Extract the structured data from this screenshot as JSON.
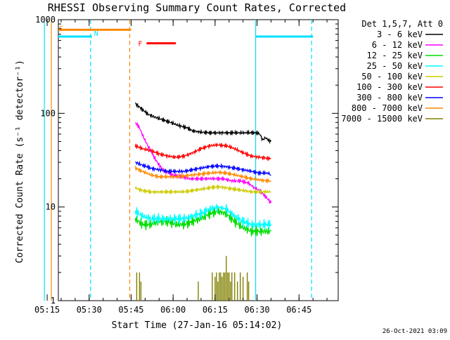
{
  "chart_data": {
    "type": "line",
    "title": "RHESSI Observing Summary Count Rates, Corrected",
    "xlabel": "Start Time (27-Jan-16 05:14:02)",
    "ylabel": "Corrected Count Rate (s⁻¹ detector⁻¹)",
    "y_scale": "log",
    "ylim": [
      1,
      1000
    ],
    "xlim_minutes": [
      5,
      105
    ],
    "x_ticks": [
      {
        "label": "05:15",
        "min": 1
      },
      {
        "label": "05:30",
        "min": 16
      },
      {
        "label": "05:45",
        "min": 31
      },
      {
        "label": "06:00",
        "min": 46
      },
      {
        "label": "06:15",
        "min": 61
      },
      {
        "label": "06:30",
        "min": 76
      },
      {
        "label": "06:45",
        "min": 91
      }
    ],
    "y_ticks": [
      {
        "label": "1",
        "value": 1
      },
      {
        "label": "10",
        "value": 10
      },
      {
        "label": "100",
        "value": 100
      },
      {
        "label": "1000",
        "value": 1000
      }
    ],
    "legend_header": "Det 1,5,7, Att 0",
    "legend_position": "right",
    "timestamp": "26-Oct-2021 03:09",
    "flag_letters": {
      "saa": "S",
      "night": "N",
      "flare": "F"
    },
    "series": [
      {
        "name": "3 - 6 keV",
        "color": "#000000",
        "x": [
          32.5,
          33.5,
          35,
          37,
          40,
          42.5,
          45,
          48,
          51,
          53,
          56,
          59,
          62,
          65,
          68,
          71,
          74,
          76,
          77,
          78,
          79,
          80,
          81
        ],
        "y": [
          128,
          120,
          110,
          98,
          90,
          85,
          80,
          74,
          70,
          65,
          63,
          62,
          62,
          62,
          62,
          62,
          62,
          62,
          60,
          52,
          55,
          52,
          50
        ]
      },
      {
        "name": "6 - 12 keV",
        "color": "#ff00ff",
        "x": [
          32.5,
          34,
          35.5,
          37,
          39,
          41,
          43,
          46,
          49,
          52,
          55,
          58,
          61,
          64,
          67,
          70,
          73,
          75,
          77,
          79,
          80,
          81
        ],
        "y": [
          80,
          70,
          55,
          45,
          35,
          28,
          24,
          22,
          21,
          20,
          20,
          20,
          20,
          20,
          19,
          19,
          18,
          16,
          15,
          13,
          12,
          11
        ]
      },
      {
        "name": "12 - 25 keV",
        "color": "#00dd00",
        "x": [
          32.5,
          35,
          38,
          41,
          44,
          47,
          50,
          53,
          56,
          59,
          62,
          65,
          68,
          71,
          74,
          77,
          80,
          81
        ],
        "y": [
          7.5,
          6.5,
          6.5,
          7,
          7,
          6.5,
          6.5,
          7,
          7.5,
          8.5,
          9,
          8.5,
          7,
          6,
          5.5,
          5.5,
          5.5,
          5.5
        ]
      },
      {
        "name": "25 - 50 keV",
        "color": "#00ffff",
        "x": [
          32.5,
          35,
          38,
          41,
          44,
          47,
          50,
          53,
          56,
          59,
          62,
          65,
          68,
          71,
          74,
          77,
          80,
          81
        ],
        "y": [
          9,
          8,
          7.5,
          7.5,
          7.5,
          7.5,
          7.5,
          8,
          8.5,
          9.5,
          10,
          9.5,
          8,
          7,
          6.5,
          6.5,
          6.5,
          6.5
        ]
      },
      {
        "name": "50 - 100 keV",
        "color": "#cccc00",
        "x": [
          32.5,
          35,
          38,
          41,
          44,
          47,
          50,
          53,
          56,
          59,
          62,
          65,
          68,
          71,
          74,
          77,
          80,
          81
        ],
        "y": [
          16,
          15,
          14.5,
          14.5,
          14.5,
          14.5,
          14.5,
          15,
          15.5,
          16,
          16.5,
          16,
          15.5,
          15,
          14.5,
          14.5,
          14.5,
          14.5
        ]
      },
      {
        "name": "100 - 300 keV",
        "color": "#ff0000",
        "x": [
          32.5,
          35,
          38,
          41,
          44,
          47,
          50,
          53,
          56,
          59,
          62,
          65,
          68,
          71,
          74,
          77,
          80,
          81
        ],
        "y": [
          45,
          42,
          40,
          37,
          35,
          34,
          35,
          38,
          42,
          45,
          46,
          45,
          42,
          38,
          35,
          34,
          33,
          33
        ]
      },
      {
        "name": "300 - 800 keV",
        "color": "#0000ff",
        "x": [
          32.5,
          35,
          38,
          41,
          44,
          47,
          50,
          53,
          56,
          59,
          62,
          65,
          68,
          71,
          74,
          77,
          80,
          81
        ],
        "y": [
          30,
          28,
          26,
          25,
          24,
          24,
          24,
          25,
          26,
          27,
          27.5,
          27,
          26,
          25,
          24,
          23,
          23,
          22
        ]
      },
      {
        "name": "800 - 7000 keV",
        "color": "#ff8800",
        "x": [
          32.5,
          35,
          38,
          41,
          44,
          47,
          50,
          53,
          56,
          59,
          62,
          65,
          68,
          71,
          74,
          77,
          80,
          81
        ],
        "y": [
          26,
          24,
          22,
          21,
          21,
          21,
          21.5,
          22,
          22.5,
          23,
          23.5,
          23,
          22,
          21,
          20,
          19.5,
          19,
          19
        ]
      },
      {
        "name": "7000 - 15000 keV",
        "color": "#808000",
        "bursts": [
          {
            "x": 33,
            "y": 2.0
          },
          {
            "x": 34,
            "y": 2.0
          },
          {
            "x": 34.5,
            "y": 1.6
          },
          {
            "x": 55,
            "y": 1.6
          },
          {
            "x": 60,
            "y": 2.0
          },
          {
            "x": 61,
            "y": 1.8
          },
          {
            "x": 61.5,
            "y": 2.0
          },
          {
            "x": 62,
            "y": 1.6
          },
          {
            "x": 62.5,
            "y": 2.0
          },
          {
            "x": 63,
            "y": 2.0
          },
          {
            "x": 63.5,
            "y": 1.8
          },
          {
            "x": 64,
            "y": 2.0
          },
          {
            "x": 64.5,
            "y": 2.0
          },
          {
            "x": 65,
            "y": 3.0
          },
          {
            "x": 65.5,
            "y": 2.0
          },
          {
            "x": 66,
            "y": 2.0
          },
          {
            "x": 66.5,
            "y": 1.6
          },
          {
            "x": 67,
            "y": 2.0
          },
          {
            "x": 68,
            "y": 2.0
          },
          {
            "x": 69,
            "y": 1.6
          },
          {
            "x": 70,
            "y": 2.0
          },
          {
            "x": 71,
            "y": 1.8
          },
          {
            "x": 72.5,
            "y": 2.0
          },
          {
            "x": 73,
            "y": 1.6
          }
        ]
      }
    ],
    "markers": {
      "saa_lines": [
        {
          "min": 2.5,
          "style": "solid"
        },
        {
          "min": 30.5,
          "style": "dashed"
        }
      ],
      "night_lines": [
        {
          "min": 0,
          "style": "solid"
        },
        {
          "min": 16.5,
          "style": "dashed"
        },
        {
          "min": 75.5,
          "style": "solid"
        },
        {
          "min": 95.5,
          "style": "dashed"
        }
      ],
      "saa_bar": {
        "start": 0,
        "end": 31,
        "y": 780
      },
      "night_bars": [
        {
          "start": 0,
          "end": 17,
          "y": 660
        },
        {
          "start": 75.5,
          "end": 96,
          "y": 660
        }
      ],
      "flare_bar": {
        "start": 36.5,
        "end": 47,
        "y": 560
      }
    }
  }
}
